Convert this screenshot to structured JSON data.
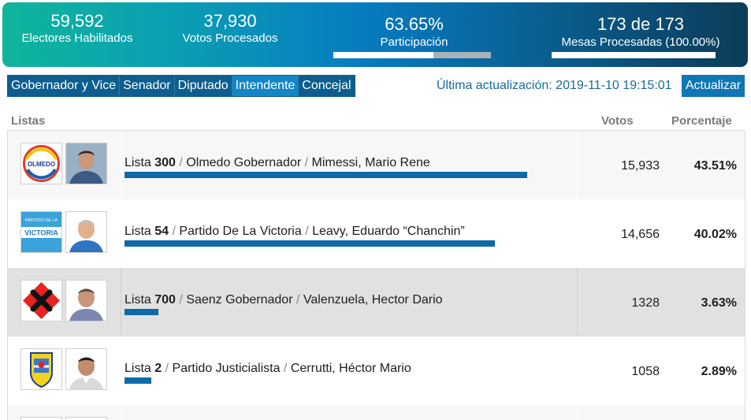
{
  "stats": {
    "electores": {
      "value": "59,592",
      "label": "Electores Habilitados"
    },
    "votos": {
      "value": "37,930",
      "label": "Votos Procesados"
    },
    "participacion": {
      "value": "63.65%",
      "label": "Participación",
      "progress_pct": 63.65
    },
    "mesas": {
      "value": "173 de 173",
      "label": "Mesas Procesadas (100.00%)",
      "progress_pct": 100
    }
  },
  "tabs": [
    {
      "label": "Gobernador y Vice",
      "active": false
    },
    {
      "label": "Senador",
      "active": false
    },
    {
      "label": "Diputado",
      "active": false
    },
    {
      "label": "Intendente",
      "active": true
    },
    {
      "label": "Concejal",
      "active": false
    }
  ],
  "updated": "Última actualización: 2019-11-10 19:15:01",
  "refresh_label": "Actualizar",
  "table": {
    "headers": {
      "listas": "Listas",
      "votos": "Votos",
      "porcentaje": "Porcentaje"
    },
    "rows": [
      {
        "lista_prefix": "Lista",
        "numero": "300",
        "partido": "Olmedo Gobernador",
        "candidato": "Mimessi, Mario Rene",
        "votos": "15,933",
        "porcentaje": "43.51%",
        "pct_value": 43.51,
        "logo_icon": "olmedo-logo-icon",
        "logo_text": "OLMEDO"
      },
      {
        "lista_prefix": "Lista",
        "numero": "54",
        "partido": "Partido De La Victoria",
        "candidato": "Leavy, Eduardo “Chanchin”",
        "votos": "14,656",
        "porcentaje": "40.02%",
        "pct_value": 40.02,
        "logo_icon": "victoria-logo-icon",
        "logo_text": "VICTORIA",
        "logo_text_top": "PARTIDO DE LA"
      },
      {
        "lista_prefix": "Lista",
        "numero": "700",
        "partido": "Saenz Gobernador",
        "candidato": "Valenzuela, Hector Dario",
        "votos": "1328",
        "porcentaje": "3.63%",
        "pct_value": 3.63,
        "logo_icon": "saenz-logo-icon"
      },
      {
        "lista_prefix": "Lista",
        "numero": "2",
        "partido": "Partido Justicialista",
        "candidato": "Cerrutti, Héctor Mario",
        "votos": "1058",
        "porcentaje": "2.89%",
        "pct_value": 2.89,
        "logo_icon": "justicialista-logo-icon"
      }
    ]
  },
  "colors": {
    "bar": "#0f69a8",
    "tab": "#0d5e8e",
    "tab_active": "#1386c6"
  }
}
